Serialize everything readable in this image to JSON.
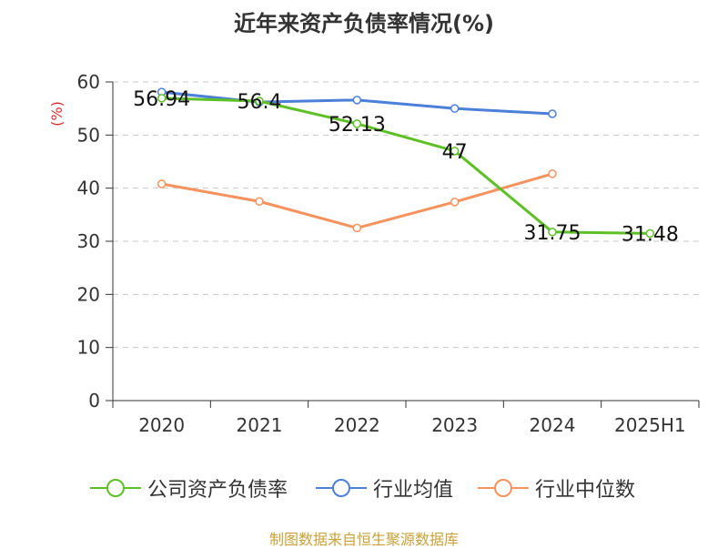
{
  "title": "近年来资产负债率情况(%)",
  "source_note": "制图数据来自恒生聚源数据库",
  "chart_data": {
    "type": "line",
    "categories": [
      "2020",
      "2021",
      "2022",
      "2023",
      "2024",
      "2025H1"
    ],
    "ylabel": "(%)",
    "ylim": [
      0,
      60
    ],
    "yticks": [
      0,
      10,
      20,
      30,
      40,
      50,
      60
    ],
    "grid": true,
    "legend_position": "bottom",
    "series": [
      {
        "name": "公司资产负债率",
        "color": "#5ec027",
        "values": [
          56.94,
          56.4,
          52.13,
          47,
          31.75,
          31.48
        ],
        "labels": [
          "56.94",
          "56.4",
          "52.13",
          "47",
          "31.75",
          "31.48"
        ]
      },
      {
        "name": "行业均值",
        "color": "#4b7fd8",
        "values": [
          58.1,
          56.2,
          56.6,
          55.0,
          54.0,
          null
        ]
      },
      {
        "name": "行业中位数",
        "color": "#f5925d",
        "values": [
          40.8,
          37.5,
          32.5,
          37.4,
          42.7,
          null
        ]
      }
    ]
  }
}
